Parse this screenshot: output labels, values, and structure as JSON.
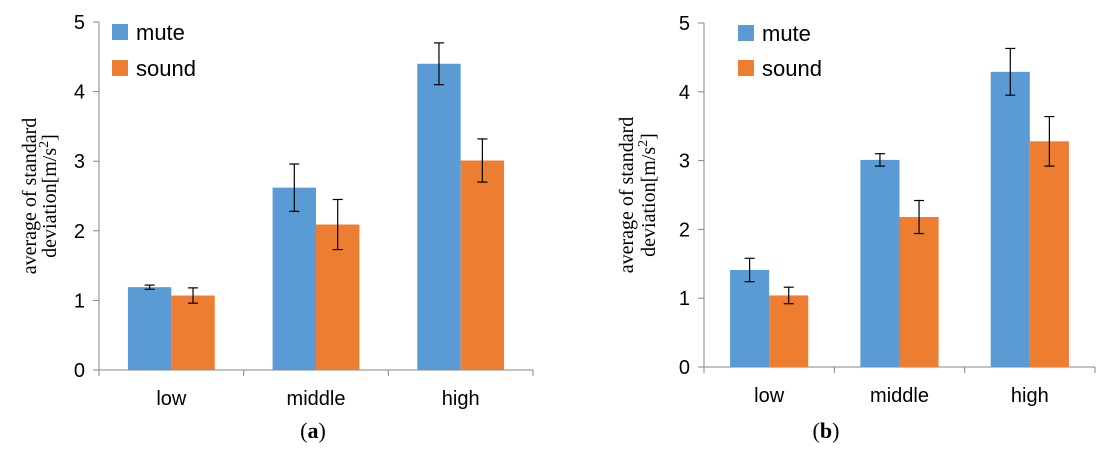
{
  "chart_data": [
    {
      "type": "bar",
      "categories": [
        "low",
        "middle",
        "high"
      ],
      "series": [
        {
          "name": "mute",
          "color": "#5b9bd5",
          "values": [
            1.19,
            2.62,
            4.4
          ],
          "errors": [
            0.03,
            0.34,
            0.3
          ]
        },
        {
          "name": "sound",
          "color": "#ed7d31",
          "values": [
            1.07,
            2.09,
            3.01
          ],
          "errors": [
            0.11,
            0.36,
            0.31
          ]
        }
      ],
      "ylabel_lines": [
        "average of standard",
        "deviation[m/s",
        "2",
        "]"
      ],
      "ylim": [
        0,
        5
      ],
      "yticks": [
        "0",
        "1",
        "2",
        "3",
        "4",
        "5"
      ],
      "grid": false,
      "legend_position": "top-left",
      "caption": {
        "open": "(",
        "letter": "a",
        "close": ")"
      }
    },
    {
      "type": "bar",
      "categories": [
        "low",
        "middle",
        "high"
      ],
      "series": [
        {
          "name": "mute",
          "color": "#5b9bd5",
          "values": [
            1.41,
            3.01,
            4.29
          ],
          "errors": [
            0.17,
            0.09,
            0.34
          ]
        },
        {
          "name": "sound",
          "color": "#ed7d31",
          "values": [
            1.04,
            2.18,
            3.28
          ],
          "errors": [
            0.12,
            0.24,
            0.36
          ]
        }
      ],
      "ylabel_lines": [
        "average of standard",
        "deviation[m/s",
        "2",
        "]"
      ],
      "ylim": [
        0,
        5
      ],
      "yticks": [
        "0",
        "1",
        "2",
        "3",
        "4",
        "5"
      ],
      "grid": false,
      "legend_position": "top-left",
      "caption": {
        "open": "(",
        "letter": "b",
        "close": ")"
      }
    }
  ]
}
